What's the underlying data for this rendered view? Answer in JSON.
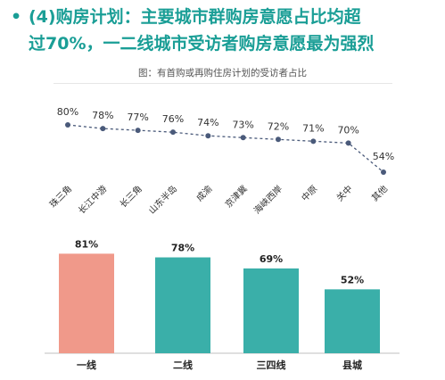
{
  "page": {
    "bullet": "•",
    "headline_line1": "(4)购房计划：主要城市群购房意愿占比均超",
    "headline_line2": "过70%，一二线城市受访者购房意愿最为强烈",
    "accent_color": "#1a9e96"
  },
  "chart_data": [
    {
      "type": "line",
      "title": "图：有首购或再购住房计划的受访者占比",
      "categories": [
        "珠三角",
        "长江中游",
        "长三角",
        "山东半岛",
        "成渝",
        "京津冀",
        "海峡西岸",
        "中原",
        "关中",
        "其他"
      ],
      "values": [
        80,
        78,
        77,
        76,
        74,
        73,
        72,
        71,
        70,
        54
      ],
      "labels": [
        "80%",
        "78%",
        "77%",
        "76%",
        "74%",
        "73%",
        "72%",
        "71%",
        "70%",
        "54%"
      ],
      "line_color": "#4a5a7a",
      "line_style": "dashed",
      "grid": false,
      "legend": "none"
    },
    {
      "type": "bar",
      "categories": [
        "一线",
        "二线",
        "三四线",
        "县城"
      ],
      "values": [
        81,
        78,
        69,
        52
      ],
      "labels": [
        "81%",
        "78%",
        "69%",
        "52%"
      ],
      "colors": [
        "#f0998a",
        "#3aafa9",
        "#3aafa9",
        "#3aafa9"
      ],
      "ylim": [
        0,
        90
      ],
      "grid": false,
      "legend": "none"
    }
  ]
}
